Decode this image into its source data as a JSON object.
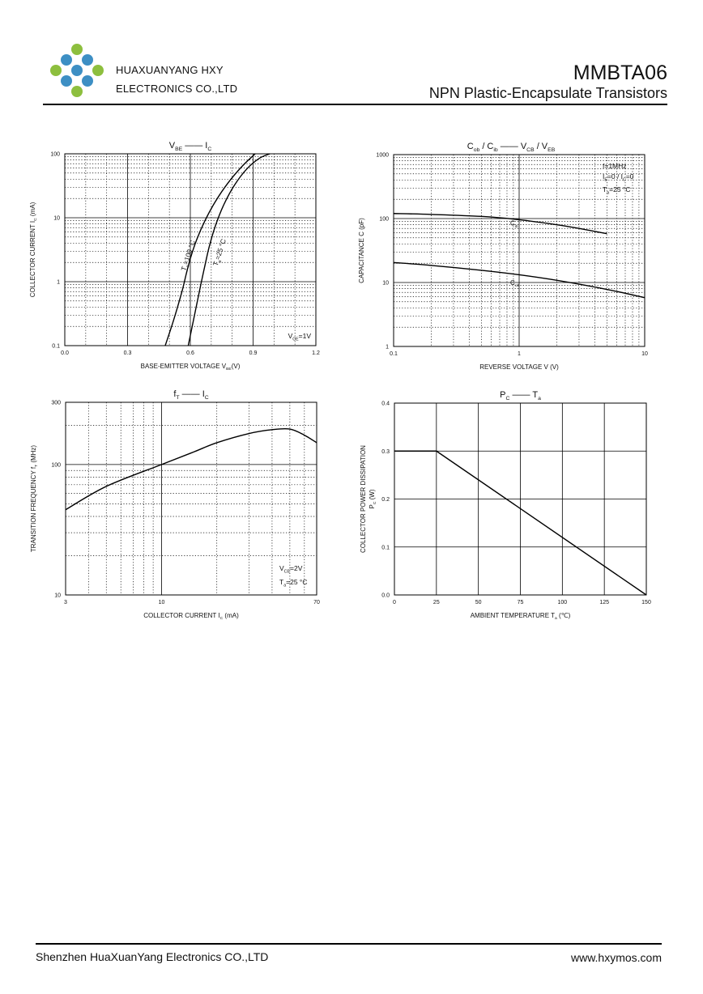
{
  "header": {
    "company_line1": "HUAXUANYANG    HXY",
    "company_line2": "ELECTRONICS CO.,LTD",
    "part_number": "MMBTA06",
    "description": "NPN  Plastic-Encapsulate  Transistors",
    "logo": {
      "icon": "hxy-dots-logo",
      "colors": [
        "#8dbf3e",
        "#3d8fc4"
      ]
    }
  },
  "footer": {
    "company": "Shenzhen HuaXuanYang Electronics CO.,LTD",
    "website": "www.hxymos.com"
  },
  "chart_data": [
    {
      "id": "vbe-ic",
      "type": "line",
      "title": {
        "main": "V",
        "main_sub": "BE",
        "sep": "——",
        "rhs": "I",
        "rhs_sub": "C"
      },
      "xlabel": "BASE-EMITTER VOLTAGE      V",
      "xlabel_sub": "BE",
      "xlabel_suffix": "(V)",
      "ylabel": "COLLECTOR CURRENT     I",
      "ylabel_sub": "C",
      "ylabel_suffix": " (mA)",
      "xscale": "linear",
      "yscale": "log",
      "xlim": [
        0,
        1.2
      ],
      "ylim": [
        0.1,
        100
      ],
      "x_ticks": [
        0,
        0.3,
        0.6,
        0.9,
        1.2
      ],
      "x_tick_labels": [
        "0.0",
        "0.3",
        "0.6",
        "0.9",
        "1.2"
      ],
      "y_ticks": [
        0.1,
        1,
        10,
        100
      ],
      "y_tick_labels": [
        "0.1",
        "1",
        "10",
        "100"
      ],
      "series": [
        {
          "name": "T=100 °C",
          "label": "T",
          "x": [
            0.48,
            0.52,
            0.56,
            0.58,
            0.6,
            0.63,
            0.67,
            0.72,
            0.78,
            0.85,
            0.91
          ],
          "y": [
            0.1,
            0.25,
            0.7,
            1.3,
            2.3,
            4.5,
            9.0,
            18,
            35,
            65,
            100
          ]
        },
        {
          "name": "T=25 °C",
          "label": "T",
          "x": [
            0.59,
            0.62,
            0.65,
            0.67,
            0.69,
            0.72,
            0.76,
            0.81,
            0.87,
            0.93,
            0.98
          ],
          "y": [
            0.1,
            0.3,
            0.9,
            1.8,
            3.5,
            7.5,
            16,
            32,
            58,
            85,
            100
          ]
        }
      ],
      "annotations": [
        {
          "text": "T",
          "sub": "a",
          "rest": "=100 °C"
        },
        {
          "text": "T",
          "sub": "a",
          "rest": "=25 °C"
        },
        {
          "text": "V",
          "sub": "CE",
          "rest": "=1V"
        }
      ]
    },
    {
      "id": "cap-v",
      "type": "line",
      "title": {
        "main": "C",
        "main_sub": "ob",
        "mid": " / C",
        "mid_sub": "ib",
        "sep": "——",
        "rhs": "V",
        "rhs_sub": "CB",
        "rhs2": " / V",
        "rhs2_sub": "EB"
      },
      "xlabel": "REVERSE  VOLTAGE   V   (V)",
      "ylabel": "CAPACITANCE    C    (pF)",
      "xscale": "log",
      "yscale": "log",
      "xlim": [
        0.1,
        10
      ],
      "ylim": [
        1,
        1000
      ],
      "x_ticks": [
        0.1,
        1,
        10
      ],
      "x_tick_labels": [
        "0.1",
        "1",
        "10"
      ],
      "y_ticks": [
        1,
        10,
        100,
        1000
      ],
      "y_tick_labels": [
        "1",
        "10",
        "100",
        "1000"
      ],
      "series": [
        {
          "name": "Cib",
          "label": "C",
          "label_sub": "ib",
          "x": [
            0.1,
            0.2,
            0.5,
            1,
            2,
            3,
            5
          ],
          "y": [
            120,
            116,
            108,
            96,
            80,
            70,
            58
          ]
        },
        {
          "name": "Cob",
          "label": "C",
          "label_sub": "ob",
          "x": [
            0.1,
            0.2,
            0.5,
            1,
            2,
            5,
            10
          ],
          "y": [
            20.5,
            18.5,
            15.5,
            13.2,
            10.8,
            7.8,
            5.8
          ]
        }
      ],
      "annotations": [
        {
          "text": "f=1MHz"
        },
        {
          "text": "I",
          "sub": "E",
          "rest": "=0 / I",
          "sub2": "C",
          "rest2": "=0"
        },
        {
          "text": "T",
          "sub": "a",
          "rest": "=25 °C"
        }
      ]
    },
    {
      "id": "ft-ic",
      "type": "line",
      "title": {
        "main": "f",
        "main_sub": "T",
        "sep": "——",
        "rhs": "I",
        "rhs_sub": "C"
      },
      "xlabel": "COLLECTOR CURRENT    I",
      "xlabel_sub": "C",
      "xlabel_suffix": "    (mA)",
      "ylabel": "TRANSITION FREQUENCY    f",
      "ylabel_sub": "T",
      "ylabel_suffix": "    (MHz)",
      "xscale": "log",
      "yscale": "log",
      "xlim": [
        3,
        70
      ],
      "ylim": [
        10,
        300
      ],
      "x_ticks": [
        3,
        10,
        70
      ],
      "x_tick_labels": [
        "3",
        "10",
        "70"
      ],
      "y_ticks": [
        10,
        100,
        300
      ],
      "y_tick_labels": [
        "10",
        "100",
        "300"
      ],
      "series": [
        {
          "name": "fT",
          "x": [
            3,
            5,
            10,
            15,
            20,
            30,
            40,
            50,
            60,
            70
          ],
          "y": [
            45,
            68,
            100,
            125,
            147,
            173,
            185,
            187,
            168,
            147
          ]
        }
      ],
      "annotations": [
        {
          "text": "V",
          "sub": "CE",
          "rest": "=2V"
        },
        {
          "text": "T",
          "sub": "a",
          "rest": "=25 °C"
        }
      ]
    },
    {
      "id": "pc-ta",
      "type": "line",
      "title": {
        "main": "P",
        "main_sub": "C",
        "sep": "——",
        "rhs": "T",
        "rhs_sub": "a"
      },
      "xlabel": "AMBIENT TEMPERATURE    T",
      "xlabel_sub": "a",
      "xlabel_suffix": "   (℃)",
      "ylabel_line1": "COLLECTOR POWER DISSIPATION",
      "ylabel_line2": "P",
      "ylabel_line2_sub": "C",
      "ylabel_line2_suffix": "  (W)",
      "xscale": "linear",
      "yscale": "linear",
      "xlim": [
        0,
        150
      ],
      "ylim": [
        0,
        0.4
      ],
      "x_ticks": [
        0,
        25,
        50,
        75,
        100,
        125,
        150
      ],
      "x_tick_labels": [
        "0",
        "25",
        "50",
        "75",
        "100",
        "125",
        "150"
      ],
      "y_ticks": [
        0,
        0.1,
        0.2,
        0.3,
        0.4
      ],
      "y_tick_labels": [
        "0.0",
        "0.1",
        "0.2",
        "0.3",
        "0.4"
      ],
      "series": [
        {
          "name": "Pc",
          "x": [
            0,
            25,
            150
          ],
          "y": [
            0.3,
            0.3,
            0
          ]
        }
      ]
    }
  ]
}
